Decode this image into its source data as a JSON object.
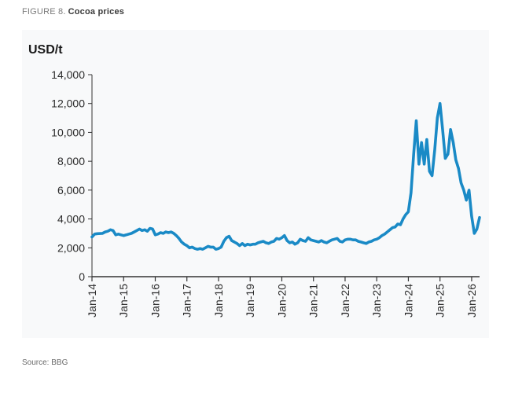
{
  "figure": {
    "number": "FIGURE 8.",
    "title": "Cocoa prices",
    "source": "Source: BBG"
  },
  "chart_data": {
    "type": "line",
    "title": "Cocoa prices",
    "ylabel": "USD/t",
    "xlabel": "",
    "ylim": [
      0,
      14000
    ],
    "xlim": [
      "2014-01",
      "2026-04"
    ],
    "y_ticks": [
      "0",
      "2,000",
      "4,000",
      "6,000",
      "8,000",
      "10,000",
      "12,000",
      "14,000"
    ],
    "y_tick_values": [
      0,
      2000,
      4000,
      6000,
      8000,
      10000,
      12000,
      14000
    ],
    "x_ticks": [
      "Jan-14",
      "Jan-15",
      "Jan-16",
      "Jan-17",
      "Jan-18",
      "Jan-19",
      "Jan-20",
      "Jan-21",
      "Jan-22",
      "Jan-23",
      "Jan-24",
      "Jan-25",
      "Jan-26"
    ],
    "x_tick_dates": [
      "2014-01",
      "2015-01",
      "2016-01",
      "2017-01",
      "2018-01",
      "2019-01",
      "2020-01",
      "2021-01",
      "2022-01",
      "2023-01",
      "2024-01",
      "2025-01",
      "2026-01"
    ],
    "grid": false,
    "line_color": "#1a8ac6",
    "series": [
      {
        "points": [
          [
            "2014-01",
            2750
          ],
          [
            "2014-02",
            2950
          ],
          [
            "2014-03",
            2980
          ],
          [
            "2014-05",
            3000
          ],
          [
            "2014-06",
            3100
          ],
          [
            "2014-07",
            3150
          ],
          [
            "2014-08",
            3250
          ],
          [
            "2014-09",
            3200
          ],
          [
            "2014-10",
            2900
          ],
          [
            "2014-11",
            2950
          ],
          [
            "2014-12",
            2900
          ],
          [
            "2015-01",
            2850
          ],
          [
            "2015-02",
            2900
          ],
          [
            "2015-03",
            2950
          ],
          [
            "2015-04",
            3000
          ],
          [
            "2015-05",
            3100
          ],
          [
            "2015-06",
            3200
          ],
          [
            "2015-07",
            3300
          ],
          [
            "2015-08",
            3200
          ],
          [
            "2015-09",
            3250
          ],
          [
            "2015-10",
            3150
          ],
          [
            "2015-11",
            3350
          ],
          [
            "2015-12",
            3300
          ],
          [
            "2016-01",
            2900
          ],
          [
            "2016-02",
            2950
          ],
          [
            "2016-03",
            3050
          ],
          [
            "2016-04",
            3000
          ],
          [
            "2016-05",
            3100
          ],
          [
            "2016-06",
            3050
          ],
          [
            "2016-07",
            3100
          ],
          [
            "2016-08",
            3000
          ],
          [
            "2016-09",
            2850
          ],
          [
            "2016-10",
            2650
          ],
          [
            "2016-11",
            2400
          ],
          [
            "2016-12",
            2250
          ],
          [
            "2017-01",
            2150
          ],
          [
            "2017-02",
            2000
          ],
          [
            "2017-03",
            2050
          ],
          [
            "2017-04",
            1950
          ],
          [
            "2017-05",
            1900
          ],
          [
            "2017-06",
            1950
          ],
          [
            "2017-07",
            1900
          ],
          [
            "2017-08",
            2000
          ],
          [
            "2017-09",
            2100
          ],
          [
            "2017-10",
            2050
          ],
          [
            "2017-11",
            2050
          ],
          [
            "2017-12",
            1900
          ],
          [
            "2018-01",
            1950
          ],
          [
            "2018-02",
            2050
          ],
          [
            "2018-03",
            2450
          ],
          [
            "2018-04",
            2700
          ],
          [
            "2018-05",
            2800
          ],
          [
            "2018-06",
            2500
          ],
          [
            "2018-07",
            2400
          ],
          [
            "2018-08",
            2300
          ],
          [
            "2018-09",
            2150
          ],
          [
            "2018-10",
            2300
          ],
          [
            "2018-11",
            2150
          ],
          [
            "2018-12",
            2250
          ],
          [
            "2019-01",
            2200
          ],
          [
            "2019-02",
            2250
          ],
          [
            "2019-03",
            2250
          ],
          [
            "2019-04",
            2350
          ],
          [
            "2019-05",
            2400
          ],
          [
            "2019-06",
            2450
          ],
          [
            "2019-07",
            2350
          ],
          [
            "2019-08",
            2300
          ],
          [
            "2019-09",
            2400
          ],
          [
            "2019-10",
            2450
          ],
          [
            "2019-11",
            2650
          ],
          [
            "2019-12",
            2600
          ],
          [
            "2020-01",
            2700
          ],
          [
            "2020-02",
            2850
          ],
          [
            "2020-03",
            2500
          ],
          [
            "2020-04",
            2350
          ],
          [
            "2020-05",
            2400
          ],
          [
            "2020-06",
            2250
          ],
          [
            "2020-07",
            2350
          ],
          [
            "2020-08",
            2600
          ],
          [
            "2020-09",
            2500
          ],
          [
            "2020-10",
            2450
          ],
          [
            "2020-11",
            2700
          ],
          [
            "2020-12",
            2550
          ],
          [
            "2021-01",
            2500
          ],
          [
            "2021-02",
            2450
          ],
          [
            "2021-03",
            2400
          ],
          [
            "2021-04",
            2500
          ],
          [
            "2021-05",
            2400
          ],
          [
            "2021-06",
            2350
          ],
          [
            "2021-07",
            2450
          ],
          [
            "2021-08",
            2550
          ],
          [
            "2021-09",
            2600
          ],
          [
            "2021-10",
            2650
          ],
          [
            "2021-11",
            2450
          ],
          [
            "2021-12",
            2400
          ],
          [
            "2022-01",
            2550
          ],
          [
            "2022-02",
            2600
          ],
          [
            "2022-03",
            2600
          ],
          [
            "2022-04",
            2550
          ],
          [
            "2022-05",
            2550
          ],
          [
            "2022-06",
            2450
          ],
          [
            "2022-07",
            2400
          ],
          [
            "2022-08",
            2350
          ],
          [
            "2022-09",
            2300
          ],
          [
            "2022-10",
            2400
          ],
          [
            "2022-11",
            2450
          ],
          [
            "2022-12",
            2550
          ],
          [
            "2023-01",
            2600
          ],
          [
            "2023-02",
            2700
          ],
          [
            "2023-03",
            2850
          ],
          [
            "2023-04",
            2950
          ],
          [
            "2023-05",
            3100
          ],
          [
            "2023-06",
            3250
          ],
          [
            "2023-07",
            3400
          ],
          [
            "2023-08",
            3450
          ],
          [
            "2023-09",
            3650
          ],
          [
            "2023-10",
            3600
          ],
          [
            "2023-11",
            4000
          ],
          [
            "2023-12",
            4300
          ],
          [
            "2024-01",
            4500
          ],
          [
            "2024-02",
            5800
          ],
          [
            "2024-03",
            8500
          ],
          [
            "2024-04",
            10800
          ],
          [
            "2024-05",
            7800
          ],
          [
            "2024-06",
            9300
          ],
          [
            "2024-07",
            7800
          ],
          [
            "2024-08",
            9500
          ],
          [
            "2024-09",
            7300
          ],
          [
            "2024-10",
            7000
          ],
          [
            "2024-11",
            8800
          ],
          [
            "2024-12",
            11000
          ],
          [
            "2025-01",
            12000
          ],
          [
            "2025-02",
            10200
          ],
          [
            "2025-03",
            8200
          ],
          [
            "2025-04",
            8500
          ],
          [
            "2025-05",
            10200
          ],
          [
            "2025-06",
            9300
          ],
          [
            "2025-07",
            8100
          ],
          [
            "2025-08",
            7500
          ],
          [
            "2025-09",
            6500
          ],
          [
            "2025-10",
            6000
          ],
          [
            "2025-11",
            5300
          ],
          [
            "2025-12",
            6000
          ],
          [
            "2026-01",
            4200
          ],
          [
            "2026-02",
            3000
          ],
          [
            "2026-03",
            3300
          ],
          [
            "2026-04",
            4100
          ]
        ]
      }
    ]
  }
}
